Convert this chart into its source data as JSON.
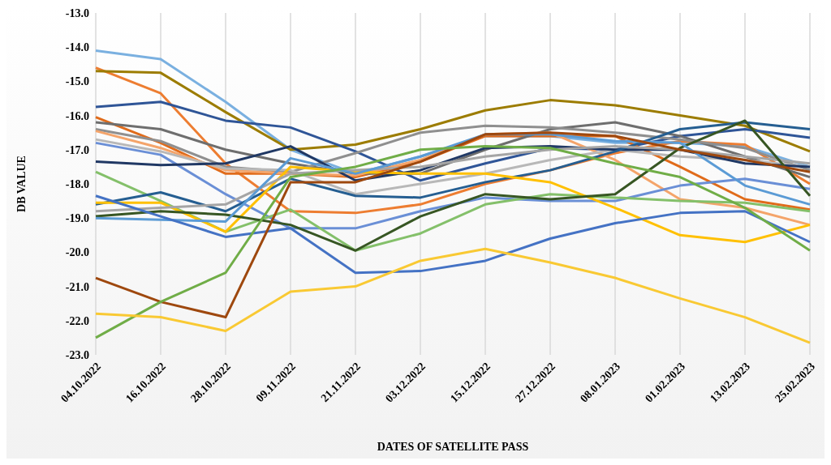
{
  "chart_data": {
    "type": "line",
    "xlabel": "DATES OF SATELLITE PASS",
    "ylabel": "DB VALUE",
    "categories": [
      "04.10.2022",
      "16.10.2022",
      "28.10.2022",
      "09.11.2022",
      "21.11.2022",
      "03.12.2022",
      "15.12.2022",
      "27.12.2022",
      "08.01.2023",
      "01.02.2023",
      "13.02.2023",
      "25.02.2023"
    ],
    "ylim": [
      -23,
      -13
    ],
    "yticks": [
      {
        "value": -23,
        "label": "-23.0"
      },
      {
        "value": -22,
        "label": "-22.0"
      },
      {
        "value": -21,
        "label": "-21.0"
      },
      {
        "value": -20,
        "label": "-20.0"
      },
      {
        "value": -19,
        "label": "-19.0"
      },
      {
        "value": -18,
        "label": "-18.0"
      },
      {
        "value": -17,
        "label": "-17.0"
      },
      {
        "value": -16,
        "label": "-16.0"
      },
      {
        "value": -15,
        "label": "-15.0"
      },
      {
        "value": -14,
        "label": "-14.0"
      },
      {
        "value": -13,
        "label": "-13.0"
      }
    ],
    "grid": "x",
    "marker": "none",
    "line_style": "solid",
    "series": [
      {
        "color": "#7ab0e0",
        "values": [
          -14.1,
          -14.35,
          -15.6,
          -17.0,
          -17.7,
          -17.2,
          -16.6,
          -16.6,
          -16.8,
          -16.8,
          -16.9,
          -17.5
        ]
      },
      {
        "color": "#ed7d31",
        "values": [
          -14.6,
          -15.35,
          -17.4,
          -18.8,
          -18.85,
          -18.6,
          -18.0,
          -17.6,
          -17.1,
          -16.75,
          -16.85,
          -18.0
        ]
      },
      {
        "color": "#9c7c00",
        "values": [
          -14.7,
          -14.75,
          -15.9,
          -17.0,
          -16.85,
          -16.4,
          -15.85,
          -15.55,
          -15.7,
          -16.0,
          -16.3,
          -17.05
        ]
      },
      {
        "color": "#2f5597",
        "values": [
          -15.75,
          -15.6,
          -16.15,
          -16.35,
          -17.05,
          -17.9,
          -17.4,
          -16.95,
          -17.0,
          -16.6,
          -16.4,
          -16.65
        ]
      },
      {
        "color": "#e06b1a",
        "values": [
          -16.05,
          -16.8,
          -17.7,
          -17.7,
          -17.8,
          -17.35,
          -16.6,
          -16.6,
          -16.6,
          -17.5,
          -18.45,
          -18.75
        ]
      },
      {
        "color": "#6e6e6e",
        "values": [
          -16.2,
          -16.4,
          -17.0,
          -17.4,
          -17.7,
          -17.7,
          -17.0,
          -16.4,
          -16.2,
          -16.6,
          -17.2,
          -17.8
        ]
      },
      {
        "color": "#8f8f8f",
        "values": [
          -16.4,
          -16.75,
          -17.5,
          -17.65,
          -17.1,
          -16.5,
          -16.3,
          -16.35,
          -16.5,
          -16.7,
          -16.95,
          -17.6
        ]
      },
      {
        "color": "#f4a46a",
        "values": [
          -16.45,
          -16.95,
          -17.6,
          -17.7,
          -17.75,
          -17.3,
          -16.55,
          -16.5,
          -17.3,
          -18.45,
          -18.7,
          -19.2
        ]
      },
      {
        "color": "#b8b8b8",
        "values": [
          -16.7,
          -17.05,
          -17.55,
          -17.6,
          -18.3,
          -18.0,
          -17.7,
          -17.3,
          -17.0,
          -17.2,
          -17.3,
          -17.5
        ]
      },
      {
        "color": "#6a8fd6",
        "values": [
          -16.8,
          -17.15,
          -18.3,
          -19.3,
          -19.3,
          -18.8,
          -18.4,
          -18.5,
          -18.5,
          -18.05,
          -17.85,
          -18.15
        ]
      },
      {
        "color": "#203864",
        "values": [
          -17.35,
          -17.45,
          -17.4,
          -16.9,
          -17.9,
          -17.6,
          -16.95,
          -16.9,
          -17.0,
          -17.0,
          -17.4,
          -17.5
        ]
      },
      {
        "color": "#84c06a",
        "values": [
          -17.65,
          -18.5,
          -19.4,
          -18.75,
          -19.95,
          -19.45,
          -18.6,
          -18.3,
          -18.4,
          -18.5,
          -18.55,
          -18.8
        ]
      },
      {
        "color": "#255e91",
        "values": [
          -18.6,
          -18.25,
          -18.8,
          -17.85,
          -18.35,
          -18.4,
          -17.95,
          -17.6,
          -17.05,
          -16.4,
          -16.2,
          -16.4
        ]
      },
      {
        "color": "#ffc000",
        "values": [
          -18.55,
          -18.55,
          -19.4,
          -17.5,
          -17.65,
          -17.7,
          -17.7,
          -17.95,
          -18.7,
          -19.5,
          -19.7,
          -19.2
        ]
      },
      {
        "color": "#a5a5a5",
        "values": [
          -18.8,
          -18.7,
          -18.6,
          -17.7,
          -17.6,
          -17.5,
          -17.2,
          -17.0,
          -16.9,
          -17.0,
          -17.2,
          -17.4
        ]
      },
      {
        "color": "#375623",
        "values": [
          -18.95,
          -18.8,
          -18.9,
          -19.2,
          -19.95,
          -18.95,
          -18.3,
          -18.45,
          -18.3,
          -16.95,
          -16.15,
          -18.35
        ]
      },
      {
        "color": "#5b9bd5",
        "values": [
          -19.0,
          -19.05,
          -19.1,
          -17.25,
          -17.7,
          -17.2,
          -16.55,
          -16.55,
          -16.75,
          -16.8,
          -18.05,
          -18.6
        ]
      },
      {
        "color": "#4472c4",
        "values": [
          -18.35,
          -18.95,
          -19.55,
          -19.3,
          -20.6,
          -20.55,
          -20.25,
          -19.6,
          -19.15,
          -18.85,
          -18.8,
          -19.7
        ]
      },
      {
        "color": "#9e480e",
        "values": [
          -20.75,
          -21.45,
          -21.9,
          -17.95,
          -17.95,
          -17.35,
          -16.55,
          -16.5,
          -16.6,
          -17.0,
          -17.3,
          -17.65
        ]
      },
      {
        "color": "#70ad47",
        "values": [
          -22.5,
          -21.45,
          -20.6,
          -17.8,
          -17.5,
          -17.0,
          -16.9,
          -16.95,
          -17.4,
          -17.8,
          -18.7,
          -19.95
        ]
      },
      {
        "color": "#f9c933",
        "values": [
          -21.8,
          -21.9,
          -22.3,
          -21.15,
          -21.0,
          -20.25,
          -19.9,
          -20.3,
          -20.75,
          -21.35,
          -21.9,
          -22.65
        ]
      }
    ]
  }
}
